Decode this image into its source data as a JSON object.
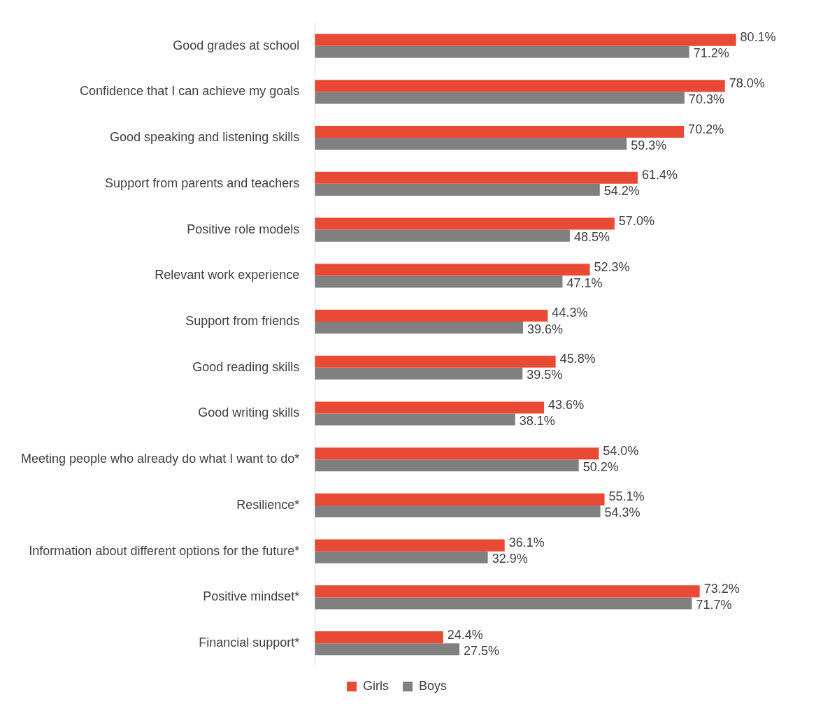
{
  "chart_data": {
    "type": "bar",
    "orientation": "horizontal",
    "categories": [
      "Good grades at school",
      "Confidence that I can achieve my goals",
      "Good speaking and listening skills",
      "Support from parents and teachers",
      "Positive role models",
      "Relevant work experience",
      "Support from friends",
      "Good reading skills",
      "Good writing skills",
      "Meeting people who already do what I want to do*",
      "Resilience*",
      "Information about different options for the future*",
      "Positive mindset*",
      "Financial support*"
    ],
    "series": [
      {
        "name": "Girls",
        "color": "#e84a36",
        "values": [
          80.1,
          78.0,
          70.2,
          61.4,
          57.0,
          52.3,
          44.3,
          45.8,
          43.6,
          54.0,
          55.1,
          36.1,
          73.2,
          24.4
        ],
        "value_labels": [
          "80.1%",
          "78.0%",
          "70.2%",
          "61.4%",
          "57.0%",
          "52.3%",
          "44.3%",
          "45.8%",
          "43.6%",
          "54.0%",
          "55.1%",
          "36.1%",
          "73.2%",
          "24.4%"
        ]
      },
      {
        "name": "Boys",
        "color": "#808080",
        "values": [
          71.2,
          70.3,
          59.3,
          54.2,
          48.5,
          47.1,
          39.6,
          39.5,
          38.1,
          50.2,
          54.3,
          32.9,
          71.7,
          27.5
        ],
        "value_labels": [
          "71.2%",
          "70.3%",
          "59.3%",
          "54.2%",
          "48.5%",
          "47.1%",
          "39.6%",
          "39.5%",
          "38.1%",
          "50.2%",
          "54.3%",
          "32.9%",
          "71.7%",
          "27.5%"
        ]
      }
    ],
    "legend": "bottom",
    "tick_labels": "y"
  }
}
